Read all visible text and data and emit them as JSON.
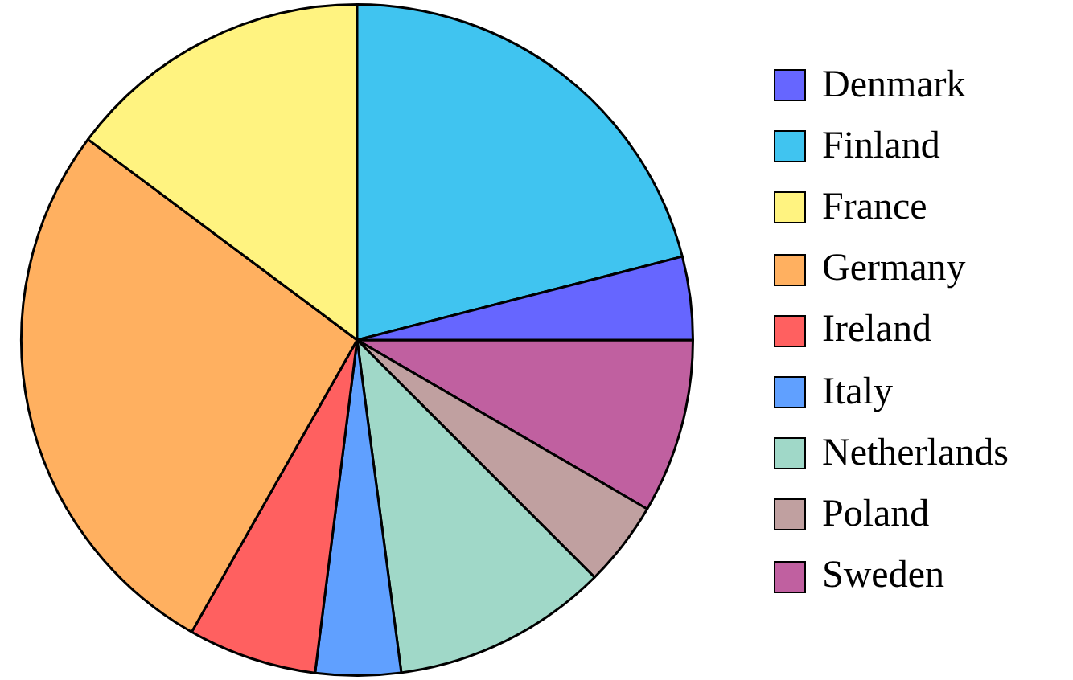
{
  "chart_data": {
    "type": "pie",
    "categories": [
      "Denmark",
      "Finland",
      "France",
      "Germany",
      "Ireland",
      "Italy",
      "Netherlands",
      "Poland",
      "Sweden"
    ],
    "values": [
      4.0,
      21.0,
      14.8,
      27.0,
      6.2,
      4.1,
      10.4,
      4.1,
      8.4
    ],
    "colors": [
      "#6666ff",
      "#40c4f0",
      "#fff380",
      "#ffb060",
      "#ff6060",
      "#60a0ff",
      "#a0d8c8",
      "#c0a0a0",
      "#c060a0"
    ],
    "legend": "right"
  }
}
